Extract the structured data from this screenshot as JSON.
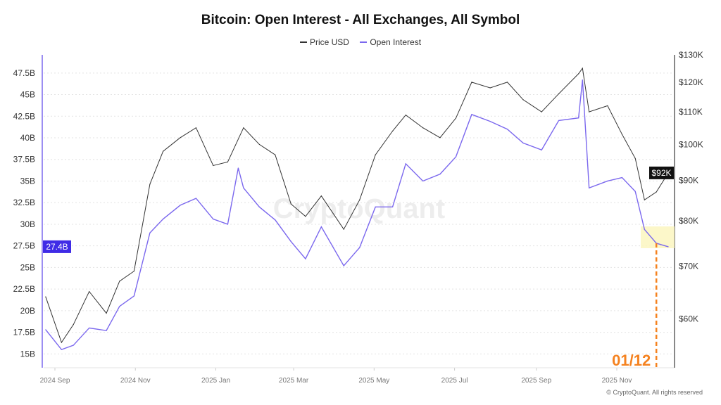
{
  "chart_data": {
    "type": "line",
    "title": "Bitcoin: Open Interest - All Exchanges, All Symbol",
    "legend": [
      "Price USD",
      "Open Interest"
    ],
    "legend_placement": "top-center",
    "colors": {
      "price": "#333333",
      "oi": "#7b68ee",
      "oi_badge": "#3f2be6",
      "annotation": "#f5821f",
      "highlight": "#fbf6c0"
    },
    "x_ticks": [
      "2024 Sep",
      "2024 Nov",
      "2025 Jan",
      "2025 Mar",
      "2025 May",
      "2025 Jul",
      "2025 Sep",
      "2025 Nov"
    ],
    "x_tick_dates": [
      "2024-09-01",
      "2024-11-01",
      "2025-01-01",
      "2025-03-01",
      "2025-05-01",
      "2025-07-01",
      "2025-09-01",
      "2025-11-01"
    ],
    "y_left": {
      "label": "Open Interest",
      "ticks": [
        "15B",
        "17.5B",
        "20B",
        "22.5B",
        "25B",
        "27.5B",
        "30B",
        "32.5B",
        "35B",
        "37.5B",
        "40B",
        "42.5B",
        "45B",
        "47.5B"
      ],
      "tick_values": [
        15,
        17.5,
        20,
        22.5,
        25,
        27.5,
        30,
        32.5,
        35,
        37.5,
        40,
        42.5,
        45,
        47.5
      ],
      "range": [
        13.4,
        49.6
      ]
    },
    "y_right": {
      "label": "Price USD",
      "scale": "log",
      "ticks": [
        "$60K",
        "$70K",
        "$80K",
        "$90K",
        "$100K",
        "$110K",
        "$120K",
        "$130K"
      ],
      "tick_values": [
        60,
        70,
        80,
        90,
        100,
        110,
        120,
        130
      ],
      "range": [
        52,
        130
      ]
    },
    "current_oi": "27.4B",
    "current_price": "$92K",
    "annotation": "01/12",
    "annotation_date": "2025-12-01",
    "watermark": "CryptoQuant",
    "series": [
      {
        "name": "Price USD",
        "unit": "K USD",
        "points": [
          [
            "2024-08-25",
            64
          ],
          [
            "2024-09-06",
            56
          ],
          [
            "2024-09-15",
            59
          ],
          [
            "2024-09-27",
            65
          ],
          [
            "2024-10-10",
            61
          ],
          [
            "2024-10-20",
            67
          ],
          [
            "2024-10-31",
            69
          ],
          [
            "2024-11-12",
            89
          ],
          [
            "2024-11-22",
            98
          ],
          [
            "2024-12-05",
            102
          ],
          [
            "2024-12-17",
            105
          ],
          [
            "2024-12-30",
            94
          ],
          [
            "2025-01-10",
            95
          ],
          [
            "2025-01-22",
            105
          ],
          [
            "2025-02-03",
            100
          ],
          [
            "2025-02-15",
            97
          ],
          [
            "2025-02-27",
            84
          ],
          [
            "2025-03-10",
            81
          ],
          [
            "2025-03-22",
            86
          ],
          [
            "2025-04-08",
            78
          ],
          [
            "2025-04-20",
            85
          ],
          [
            "2025-05-02",
            97
          ],
          [
            "2025-05-15",
            104
          ],
          [
            "2025-05-25",
            109
          ],
          [
            "2025-06-07",
            105
          ],
          [
            "2025-06-20",
            102
          ],
          [
            "2025-07-02",
            108
          ],
          [
            "2025-07-14",
            120
          ],
          [
            "2025-07-28",
            118
          ],
          [
            "2025-08-10",
            120
          ],
          [
            "2025-08-22",
            114
          ],
          [
            "2025-09-05",
            110
          ],
          [
            "2025-09-18",
            116
          ],
          [
            "2025-10-03",
            123
          ],
          [
            "2025-10-06",
            125
          ],
          [
            "2025-10-11",
            110
          ],
          [
            "2025-10-25",
            112
          ],
          [
            "2025-11-05",
            103
          ],
          [
            "2025-11-15",
            96
          ],
          [
            "2025-11-22",
            85
          ],
          [
            "2025-12-01",
            87
          ],
          [
            "2025-12-10",
            92
          ]
        ]
      },
      {
        "name": "Open Interest",
        "unit": "B USD",
        "points": [
          [
            "2024-08-25",
            17.8
          ],
          [
            "2024-09-06",
            15.5
          ],
          [
            "2024-09-15",
            16
          ],
          [
            "2024-09-27",
            18
          ],
          [
            "2024-10-10",
            17.7
          ],
          [
            "2024-10-20",
            20.5
          ],
          [
            "2024-10-31",
            21.7
          ],
          [
            "2024-11-12",
            29
          ],
          [
            "2024-11-22",
            30.6
          ],
          [
            "2024-12-05",
            32.2
          ],
          [
            "2024-12-17",
            33
          ],
          [
            "2024-12-30",
            30.6
          ],
          [
            "2025-01-10",
            30
          ],
          [
            "2025-01-18",
            36.5
          ],
          [
            "2025-01-22",
            34.2
          ],
          [
            "2025-02-03",
            32
          ],
          [
            "2025-02-15",
            30.5
          ],
          [
            "2025-02-27",
            28
          ],
          [
            "2025-03-10",
            26
          ],
          [
            "2025-03-22",
            29.7
          ],
          [
            "2025-04-08",
            25.2
          ],
          [
            "2025-04-20",
            27.3
          ],
          [
            "2025-05-02",
            32
          ],
          [
            "2025-05-15",
            32
          ],
          [
            "2025-05-25",
            37
          ],
          [
            "2025-06-07",
            35
          ],
          [
            "2025-06-20",
            35.8
          ],
          [
            "2025-07-02",
            37.8
          ],
          [
            "2025-07-14",
            42.7
          ],
          [
            "2025-07-28",
            41.9
          ],
          [
            "2025-08-10",
            41
          ],
          [
            "2025-08-22",
            39.4
          ],
          [
            "2025-09-05",
            38.6
          ],
          [
            "2025-09-18",
            42
          ],
          [
            "2025-10-03",
            42.3
          ],
          [
            "2025-10-06",
            46.7
          ],
          [
            "2025-10-11",
            34.2
          ],
          [
            "2025-10-25",
            35
          ],
          [
            "2025-11-05",
            35.4
          ],
          [
            "2025-11-15",
            33.8
          ],
          [
            "2025-11-22",
            29.4
          ],
          [
            "2025-12-01",
            27.8
          ],
          [
            "2025-12-10",
            27.4
          ]
        ]
      }
    ]
  },
  "footer": "© CryptoQuant. All rights reserved"
}
